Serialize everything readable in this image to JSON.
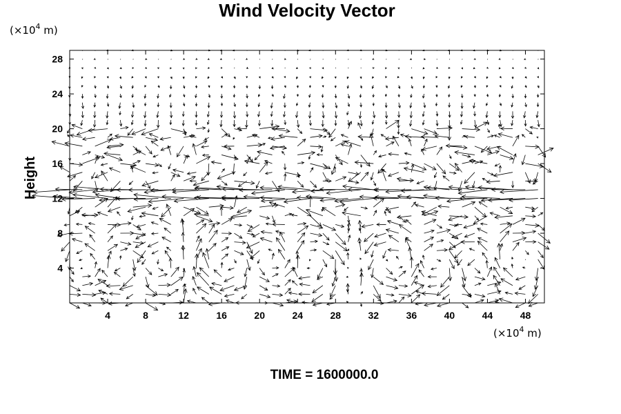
{
  "chart_data": {
    "type": "vector-field",
    "title": "Wind Velocity Vector",
    "ylabel": "Height",
    "x_unit": {
      "prefix": "(×10",
      "exp": "4",
      "suffix": " m)"
    },
    "y_unit": {
      "prefix": "(×10",
      "exp": "4",
      "suffix": " m)"
    },
    "xlim": [
      0,
      50
    ],
    "ylim": [
      0,
      29
    ],
    "x_ticks": [
      4,
      8,
      12,
      16,
      20,
      24,
      28,
      32,
      36,
      40,
      44,
      48
    ],
    "y_ticks": [
      4,
      8,
      12,
      16,
      20,
      24,
      28
    ],
    "x_tick_labels": [
      "4",
      "8",
      "12",
      "16",
      "20",
      "24",
      "28",
      "32",
      "36",
      "40",
      "44",
      "48"
    ],
    "y_tick_labels": [
      "4",
      "8",
      "12",
      "16",
      "20",
      "24",
      "28"
    ],
    "grid_spacing": {
      "dx": 1.333,
      "dy": 1.0
    },
    "footer": "TIME = 1600000.0"
  }
}
